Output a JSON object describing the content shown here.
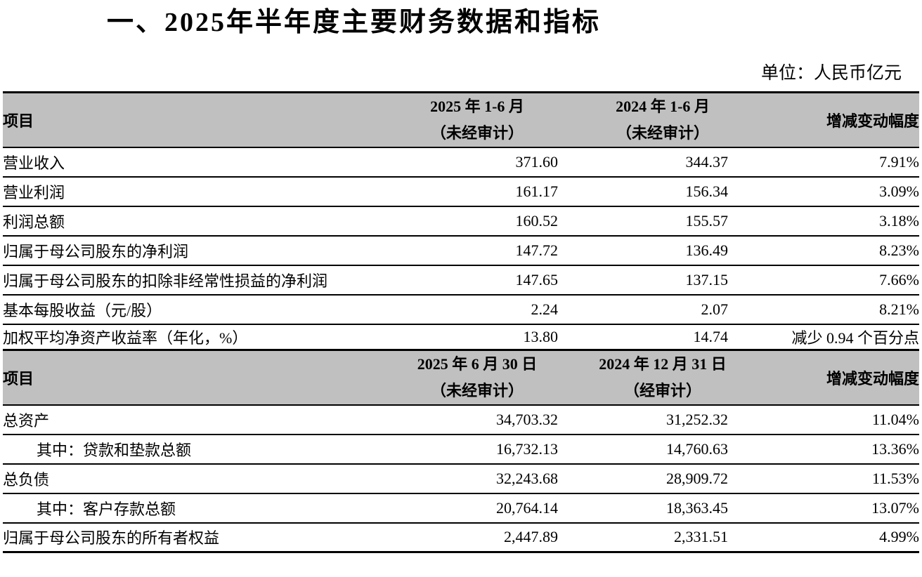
{
  "page": {
    "title": "一、2025年半年度主要财务数据和指标",
    "unit_label": "单位：人民币亿元"
  },
  "colors": {
    "header_bg": "#c0c0c0",
    "border_color": "#000000",
    "text_color": "#000000",
    "page_bg": "#ffffff"
  },
  "table": {
    "section1": {
      "header": {
        "col1": "项目",
        "col2_line1": "2025 年 1-6 月",
        "col2_line2": "（未经审计）",
        "col3_line1": "2024 年 1-6 月",
        "col3_line2": "（未经审计）",
        "col4": "增减变动幅度"
      },
      "rows": [
        {
          "item": "营业收入",
          "v2025": "371.60",
          "v2024": "344.37",
          "change": "7.91%"
        },
        {
          "item": "营业利润",
          "v2025": "161.17",
          "v2024": "156.34",
          "change": "3.09%"
        },
        {
          "item": "利润总额",
          "v2025": "160.52",
          "v2024": "155.57",
          "change": "3.18%"
        },
        {
          "item": "归属于母公司股东的净利润",
          "v2025": "147.72",
          "v2024": "136.49",
          "change": "8.23%"
        },
        {
          "item": "归属于母公司股东的扣除非经常性损益的净利润",
          "v2025": "147.65",
          "v2024": "137.15",
          "change": "7.66%"
        },
        {
          "item": "基本每股收益（元/股）",
          "v2025": "2.24",
          "v2024": "2.07",
          "change": "8.21%"
        },
        {
          "item": "加权平均净资产收益率（年化，%）",
          "v2025": "13.80",
          "v2024": "14.74",
          "change": "减少 0.94 个百分点"
        }
      ]
    },
    "section2": {
      "header": {
        "col1": "项目",
        "col2_line1": "2025 年 6 月 30 日",
        "col2_line2": "（未经审计）",
        "col3_line1": "2024 年 12 月 31 日",
        "col3_line2": "（经审计）",
        "col4": "增减变动幅度"
      },
      "rows": [
        {
          "item": "总资产",
          "v2025": "34,703.32",
          "v2024": "31,252.32",
          "change": "11.04%"
        },
        {
          "item": "其中：贷款和垫款总额",
          "v2025": "16,732.13",
          "v2024": "14,760.63",
          "change": "13.36%"
        },
        {
          "item": "总负债",
          "v2025": "32,243.68",
          "v2024": "28,909.72",
          "change": "11.53%"
        },
        {
          "item": "其中：客户存款总额",
          "v2025": "20,764.14",
          "v2024": "18,363.45",
          "change": "13.07%"
        },
        {
          "item": "归属于母公司股东的所有者权益",
          "v2025": "2,447.89",
          "v2024": "2,331.51",
          "change": "4.99%"
        }
      ]
    }
  }
}
